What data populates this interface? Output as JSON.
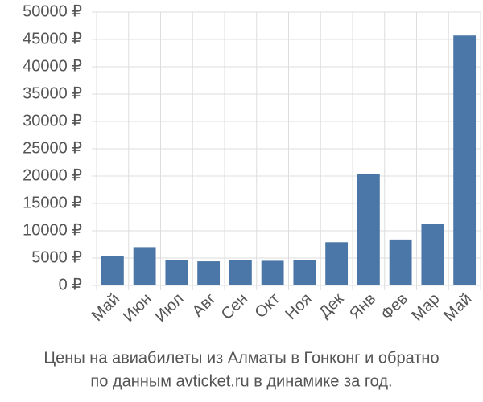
{
  "chart_data": {
    "type": "bar",
    "title": [
      "Цены на авиабилеты из Алматы в Гонконг и обратно",
      "по данным avticket.ru в динамике за год."
    ],
    "categories": [
      "Май",
      "Июн",
      "Июл",
      "Авг",
      "Сен",
      "Окт",
      "Ноя",
      "Дек",
      "Янв",
      "Фев",
      "Мар",
      "Май"
    ],
    "values": [
      5400,
      7000,
      4600,
      4400,
      4700,
      4500,
      4600,
      7900,
      20300,
      8400,
      11200,
      45700
    ],
    "color": "#4a76a8",
    "ylim": [
      0,
      50000
    ],
    "yticks": [
      {
        "value": 0,
        "label": "0 ₽"
      },
      {
        "value": 5000,
        "label": "5000 ₽"
      },
      {
        "value": 10000,
        "label": "10000 ₽"
      },
      {
        "value": 15000,
        "label": "15000 ₽"
      },
      {
        "value": 20000,
        "label": "20000 ₽"
      },
      {
        "value": 25000,
        "label": "25000 ₽"
      },
      {
        "value": 30000,
        "label": "30000 ₽"
      },
      {
        "value": 35000,
        "label": "35000 ₽"
      },
      {
        "value": 40000,
        "label": "40000 ₽"
      },
      {
        "value": 45000,
        "label": "45000 ₽"
      },
      {
        "value": 50000,
        "label": "50000 ₽"
      }
    ],
    "grid": true
  }
}
